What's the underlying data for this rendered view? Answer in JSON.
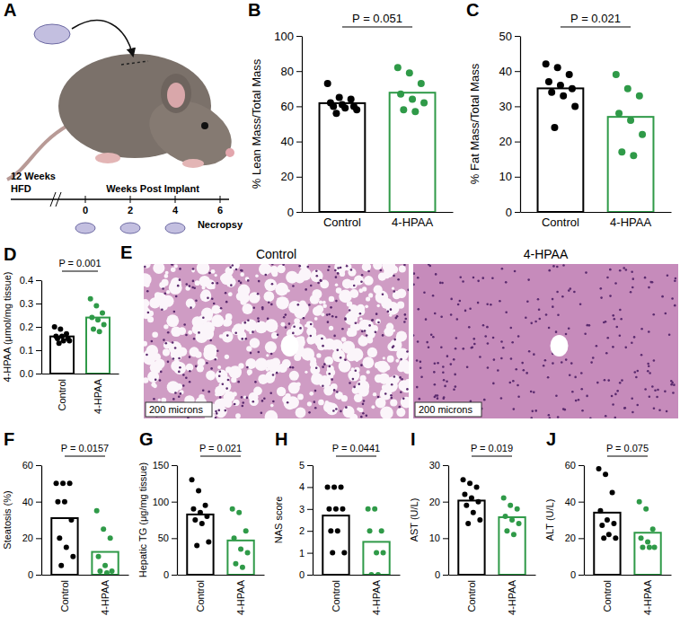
{
  "schematic": {
    "panel": "A",
    "left_label_1": "12 Weeks",
    "left_label_2": "HFD",
    "axis_label": "Weeks Post Implant",
    "ticks": [
      0,
      2,
      4,
      6
    ],
    "implant_weeks": [
      0,
      2,
      4
    ],
    "end_label": "Necropsy"
  },
  "histology": {
    "panel": "E",
    "titles": [
      "Control",
      "4-HPAA"
    ],
    "scale_bar": "200 microns"
  },
  "chart_data": [
    {
      "type": "bar",
      "panel": "B",
      "y_label": "% Lean Mass/Total Mass",
      "annotation": "P = 0.051",
      "categories": [
        "Control",
        "4-HPAA"
      ],
      "values": [
        61.8,
        67.75
      ],
      "points": [
        [
          73,
          65,
          64,
          62,
          61,
          60,
          60,
          59,
          58,
          56
        ],
        [
          82,
          79,
          73,
          67,
          64,
          62,
          58,
          57
        ]
      ],
      "colors": [
        "#000000",
        "#2f9a48"
      ],
      "ylim": [
        0,
        100
      ],
      "yticks": [
        0,
        20,
        40,
        60,
        80,
        100
      ]
    },
    {
      "type": "bar",
      "panel": "C",
      "y_label": "% Fat Mass/Total Mass",
      "annotation": "P = 0.021",
      "categories": [
        "Control",
        "4-HPAA"
      ],
      "values": [
        35.1,
        27
      ],
      "points": [
        [
          42,
          41,
          39,
          37,
          36,
          35,
          34,
          33,
          30,
          24
        ],
        [
          39,
          35,
          33,
          28,
          26,
          22,
          17,
          16
        ]
      ],
      "colors": [
        "#000000",
        "#2f9a48"
      ],
      "ylim": [
        0,
        50
      ],
      "yticks": [
        0,
        10,
        20,
        30,
        40,
        50
      ]
    },
    {
      "type": "bar",
      "panel": "D",
      "y_label": "4-HPAA (μmol/mg tissue)",
      "annotation": "P = 0.001",
      "categories": [
        "Control",
        "4-HPAA"
      ],
      "values": [
        0.159,
        0.24
      ],
      "points": [
        [
          0.2,
          0.19,
          0.17,
          0.16,
          0.16,
          0.15,
          0.15,
          0.14,
          0.14,
          0.13
        ],
        [
          0.32,
          0.29,
          0.26,
          0.24,
          0.23,
          0.21,
          0.19,
          0.18
        ]
      ],
      "colors": [
        "#000000",
        "#2f9a48"
      ],
      "ylim": [
        0,
        0.4
      ],
      "yticks": [
        {
          "value": 0,
          "label": "0.0"
        },
        0.1,
        0.2,
        0.3,
        0.4
      ]
    },
    {
      "type": "bar",
      "panel": "F",
      "y_label": "Steatosis (%)",
      "annotation": "P = 0.0157",
      "categories": [
        "Control",
        "4-HPAA"
      ],
      "values": [
        31,
        12.5
      ],
      "points": [
        [
          50,
          50,
          50,
          40,
          40,
          30,
          20,
          15,
          10,
          5
        ],
        [
          35,
          25,
          20,
          10,
          5,
          2,
          2,
          1
        ]
      ],
      "colors": [
        "#000000",
        "#2f9a48"
      ],
      "ylim": [
        0,
        60
      ],
      "yticks": [
        0,
        20,
        40,
        60
      ]
    },
    {
      "type": "bar",
      "panel": "G",
      "y_label": "Hepatic TG (μg/mg tissue)",
      "annotation": "P = 0.021",
      "categories": [
        "Control",
        "4-HPAA"
      ],
      "values": [
        82.5,
        46.9
      ],
      "points": [
        [
          130,
          115,
          95,
          90,
          85,
          80,
          75,
          70,
          45,
          40
        ],
        [
          90,
          85,
          60,
          50,
          35,
          30,
          15,
          10
        ]
      ],
      "colors": [
        "#000000",
        "#2f9a48"
      ],
      "ylim": [
        0,
        150
      ],
      "yticks": [
        0,
        50,
        100,
        150
      ]
    },
    {
      "type": "bar",
      "panel": "H",
      "y_label": "NAS score",
      "annotation": "P = 0.0441",
      "categories": [
        "Control",
        "4-HPAA"
      ],
      "values": [
        2.7,
        1.5
      ],
      "points": [
        [
          4,
          4,
          4,
          3,
          3,
          3,
          2,
          2,
          1,
          1
        ],
        [
          3,
          3,
          2,
          2,
          1,
          1,
          0,
          0
        ]
      ],
      "colors": [
        "#000000",
        "#2f9a48"
      ],
      "ylim": [
        0,
        5
      ],
      "yticks": [
        0,
        1,
        2,
        3,
        4,
        5
      ]
    },
    {
      "type": "bar",
      "panel": "I",
      "y_label": "AST (U/L)",
      "annotation": "P = 0.019",
      "categories": [
        "Control",
        "4-HPAA"
      ],
      "values": [
        20.3,
        15.75
      ],
      "points": [
        [
          26,
          25,
          24,
          22,
          21,
          20,
          19,
          17,
          15,
          14
        ],
        [
          21,
          19,
          18,
          16,
          15,
          14,
          12,
          11
        ]
      ],
      "colors": [
        "#000000",
        "#2f9a48"
      ],
      "ylim": [
        0,
        30
      ],
      "yticks": [
        0,
        10,
        20,
        30
      ]
    },
    {
      "type": "bar",
      "panel": "J",
      "y_label": "ALT (U/L)",
      "annotation": "P = 0.075",
      "categories": [
        "Control",
        "4-HPAA"
      ],
      "values": [
        34,
        23
      ],
      "points": [
        [
          58,
          55,
          45,
          35,
          30,
          28,
          27,
          22,
          20,
          20
        ],
        [
          40,
          36,
          25,
          20,
          18,
          15,
          15,
          15
        ]
      ],
      "colors": [
        "#000000",
        "#2f9a48"
      ],
      "ylim": [
        0,
        60
      ],
      "yticks": [
        0,
        20,
        40,
        60
      ]
    }
  ]
}
